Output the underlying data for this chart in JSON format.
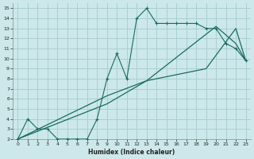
{
  "xlabel": "Humidex (Indice chaleur)",
  "bg_color": "#cce8ea",
  "grid_color": "#aacfd2",
  "line_color": "#1a6b60",
  "xlim": [
    -0.5,
    23.5
  ],
  "ylim": [
    2,
    15.5
  ],
  "xticks": [
    0,
    1,
    2,
    3,
    4,
    5,
    6,
    7,
    8,
    9,
    10,
    11,
    12,
    13,
    14,
    15,
    16,
    17,
    18,
    19,
    20,
    21,
    22,
    23
  ],
  "yticks": [
    2,
    3,
    4,
    5,
    6,
    7,
    8,
    9,
    10,
    11,
    12,
    13,
    14,
    15
  ],
  "line1_x": [
    0,
    1,
    2,
    3,
    4,
    5,
    6,
    7,
    8,
    9,
    10,
    11,
    12,
    13,
    14,
    15,
    16,
    17,
    18,
    19,
    20,
    21,
    22,
    23
  ],
  "line1_y": [
    2,
    4,
    3,
    3,
    2,
    2,
    2,
    2,
    4,
    8,
    10.5,
    8,
    14,
    15,
    13.5,
    13.5,
    13.5,
    13.5,
    13.5,
    13,
    13,
    11.5,
    11,
    9.8
  ],
  "line2_x": [
    0,
    9,
    13,
    19,
    22,
    23
  ],
  "line2_y": [
    2,
    5.5,
    7.8,
    9,
    13,
    9.8
  ],
  "line3_x": [
    0,
    9,
    13,
    20,
    22,
    23
  ],
  "line3_y": [
    2,
    6.3,
    7.8,
    13.2,
    11.5,
    9.8
  ]
}
